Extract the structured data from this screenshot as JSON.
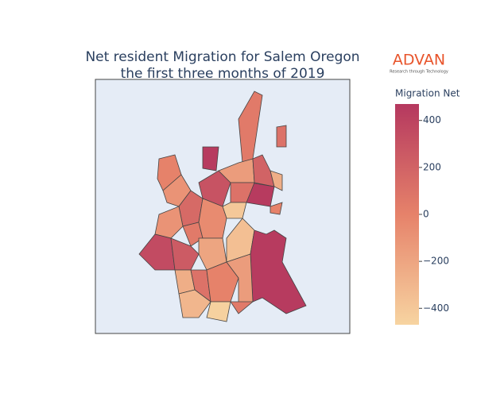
{
  "chart_data": {
    "type": "choropleth",
    "title_lines": [
      "Net resident Migration for Salem Oregon",
      "the first three months of 2019"
    ],
    "colorbar_title": "Migration Net",
    "logo": "ADVAN",
    "logo_tagline": "Research through Technology",
    "colorscale": [
      [
        0,
        "#f7d4a1"
      ],
      [
        0.5,
        "#e6826a"
      ],
      [
        1,
        "#b5385f"
      ]
    ],
    "zlim": [
      -470,
      470
    ],
    "zticks": [
      400,
      200,
      0,
      {
        "value": -200,
        "label": "−200"
      },
      {
        "value": -400,
        "label": "−400"
      }
    ],
    "values": [
      50,
      100,
      450,
      0,
      -100,
      150,
      300,
      -150,
      200,
      -250,
      450,
      100,
      -400,
      0,
      -100,
      50,
      -50,
      350,
      250,
      -200,
      -350,
      450,
      -250,
      100,
      0,
      -150,
      -300,
      -450,
      50
    ]
  }
}
